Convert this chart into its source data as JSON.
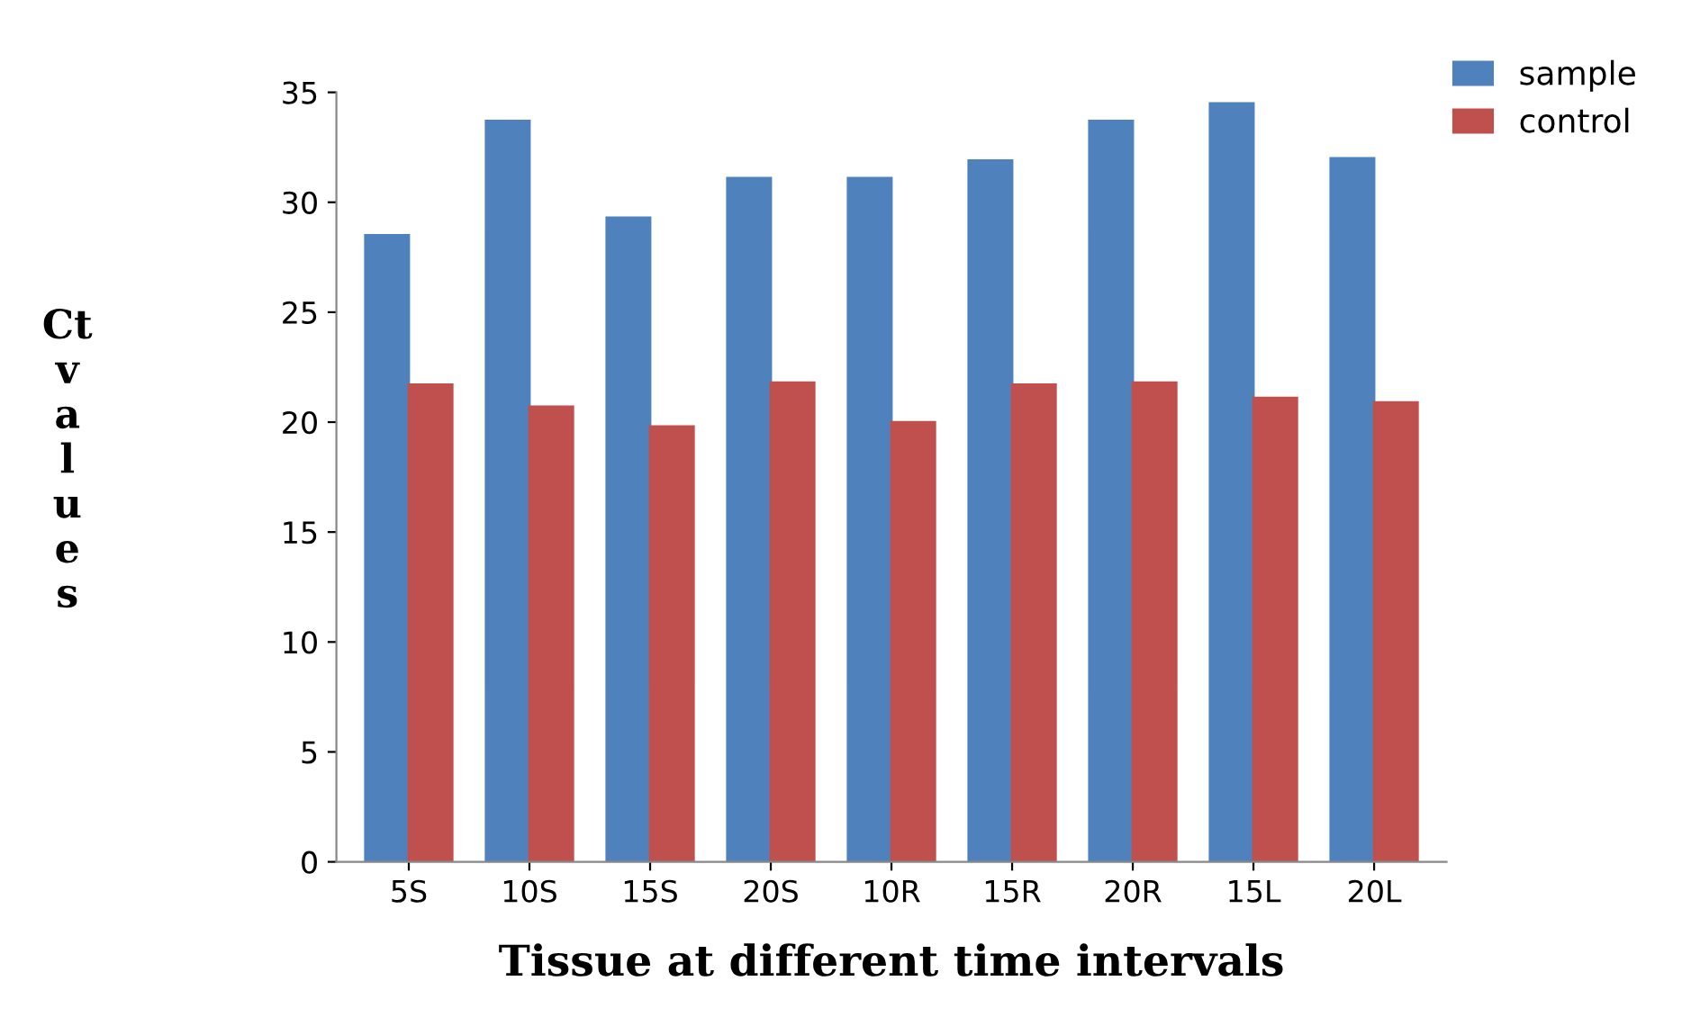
{
  "chart_data": {
    "type": "bar",
    "xlabel": "Tissue at different time intervals",
    "ylabel": "Ct\nv\na\nl\nu\ne\ns",
    "categories": [
      "5S",
      "10S",
      "15S",
      "20S",
      "10R",
      "15R",
      "20R",
      "15L",
      "20L"
    ],
    "series": [
      {
        "name": "sample",
        "color": "#4f81bd",
        "values": [
          28.5,
          33.7,
          29.3,
          31.1,
          31.1,
          31.9,
          33.7,
          34.5,
          32.0
        ]
      },
      {
        "name": "control",
        "color": "#c0504d",
        "values": [
          21.7,
          20.7,
          19.8,
          21.8,
          20.0,
          21.7,
          21.8,
          21.1,
          20.9
        ]
      }
    ],
    "ylim": [
      0,
      35
    ],
    "yticks": [
      0,
      5,
      10,
      15,
      20,
      25,
      30,
      35
    ],
    "grid": false,
    "legend": "top right"
  }
}
